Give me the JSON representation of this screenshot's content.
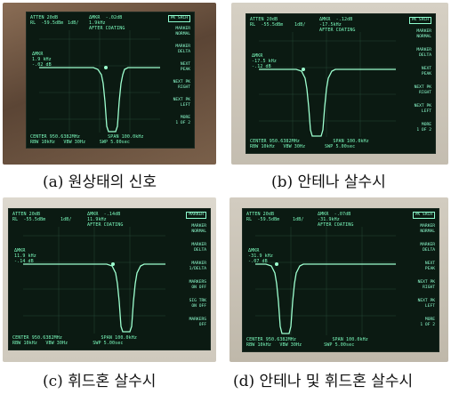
{
  "panels": [
    {
      "id": "a",
      "caption": "(a) 원상태의 신호",
      "header": {
        "atten": "ATTEN 20dB",
        "rl": "RL  -59.5dBm",
        "scale": "1dB/",
        "mkr": "ΔMKR  -.02dB",
        "mkr_freq": "1.9kHz",
        "note": "AFTER COATING"
      },
      "delta_label": "ΔMKR\n1.9 kHz\n-.02 dB",
      "footer": {
        "center": "CENTER 950.6382MHz",
        "span": "SPAN 100.0kHz",
        "rbw": "RBW 10kHz",
        "vbw": "VBW 30Hz",
        "swp": "SWP 5.00sec"
      },
      "menu": [
        "PK SRCH",
        "MARKER\nNORMAL",
        "MARKER\nDELTA",
        "NEXT\nPEAK",
        "NEXT PK\nRIGHT",
        "NEXT PK\nLEFT",
        "MORE\n1 OF 2"
      ]
    },
    {
      "id": "b",
      "caption": "(b) 안테나 살수시",
      "header": {
        "atten": "ATTEN 20dB",
        "rl": "RL  -55.5dBm",
        "scale": "1dB/",
        "mkr": "ΔMKR  -.12dB",
        "mkr_freq": "-17.5kHz",
        "note": "AFTER COATING"
      },
      "delta_label": "ΔMKR\n-17.5 kHz\n-.12 dB",
      "footer": {
        "center": "CENTER 950.6382MHz",
        "span": "SPAN 100.0kHz",
        "rbw": "RBW 10kHz",
        "vbw": "VBW 30Hz",
        "swp": "SWP 5.00sec"
      },
      "menu": [
        "PK SRCH",
        "MARKER\nNORMAL",
        "MARKER\nDELTA",
        "NEXT\nPEAK",
        "NEXT PK\nRIGHT",
        "NEXT PK\nLEFT",
        "MORE\n1 OF 2"
      ]
    },
    {
      "id": "c",
      "caption": "(c) 휘드혼 살수시",
      "header": {
        "atten": "ATTEN 20dB",
        "rl": "RL  -55.5dBm",
        "scale": "1dB/",
        "mkr": "ΔMKR  -.14dB",
        "mkr_freq": "11.9kHz",
        "note": "AFTER COATING"
      },
      "delta_label": "ΔMKR\n11.9 kHz\n-.14 dB",
      "footer": {
        "center": "CENTER 950.6382MHz",
        "span": "SPAN 100.0kHz",
        "rbw": "RBW 10kHz",
        "vbw": "VBW 30Hz",
        "swp": "SWP 5.00sec"
      },
      "menu": [
        "MARKER",
        "MARKER\nNORMAL",
        "MARKER\nDELTA",
        "MARKER\n1/DELTA",
        "MARKERS\nON OFF",
        "SIG TRK\nON OFF",
        "MARKERS\nOFF"
      ]
    },
    {
      "id": "d",
      "caption": "(d) 안테나 및 휘드혼 살수시",
      "header": {
        "atten": "ATTEN 20dB",
        "rl": "RL  -59.5dBm",
        "scale": "1dB/",
        "mkr": "ΔMKR  -.07dB",
        "mkr_freq": "-31.9kHz",
        "note": "AFTER COATING"
      },
      "delta_label": "ΔMKR\n-31.9 kHz\n-.07 dB",
      "footer": {
        "center": "CENTER 950.6382MHz",
        "span": "SPAN 100.0kHz",
        "rbw": "RBW 10kHz",
        "vbw": "VBW 30Hz",
        "swp": "SWP 5.00sec"
      },
      "menu": [
        "PK SRCH",
        "MARKER\nNORMAL",
        "MARKER\nDELTA",
        "NEXT\nPEAK",
        "NEXT PK\nRIGHT",
        "NEXT PK\nLEFT",
        "MORE\n1 OF 2"
      ]
    }
  ],
  "colors": {
    "trace": "#9dffcf",
    "screen": "#0b1a12",
    "bezel_a": "#6b5442",
    "bezel_b": "#c9c2b6",
    "bezel_c": "#d7d2c8",
    "bezel_d": "#c7c0b3"
  }
}
